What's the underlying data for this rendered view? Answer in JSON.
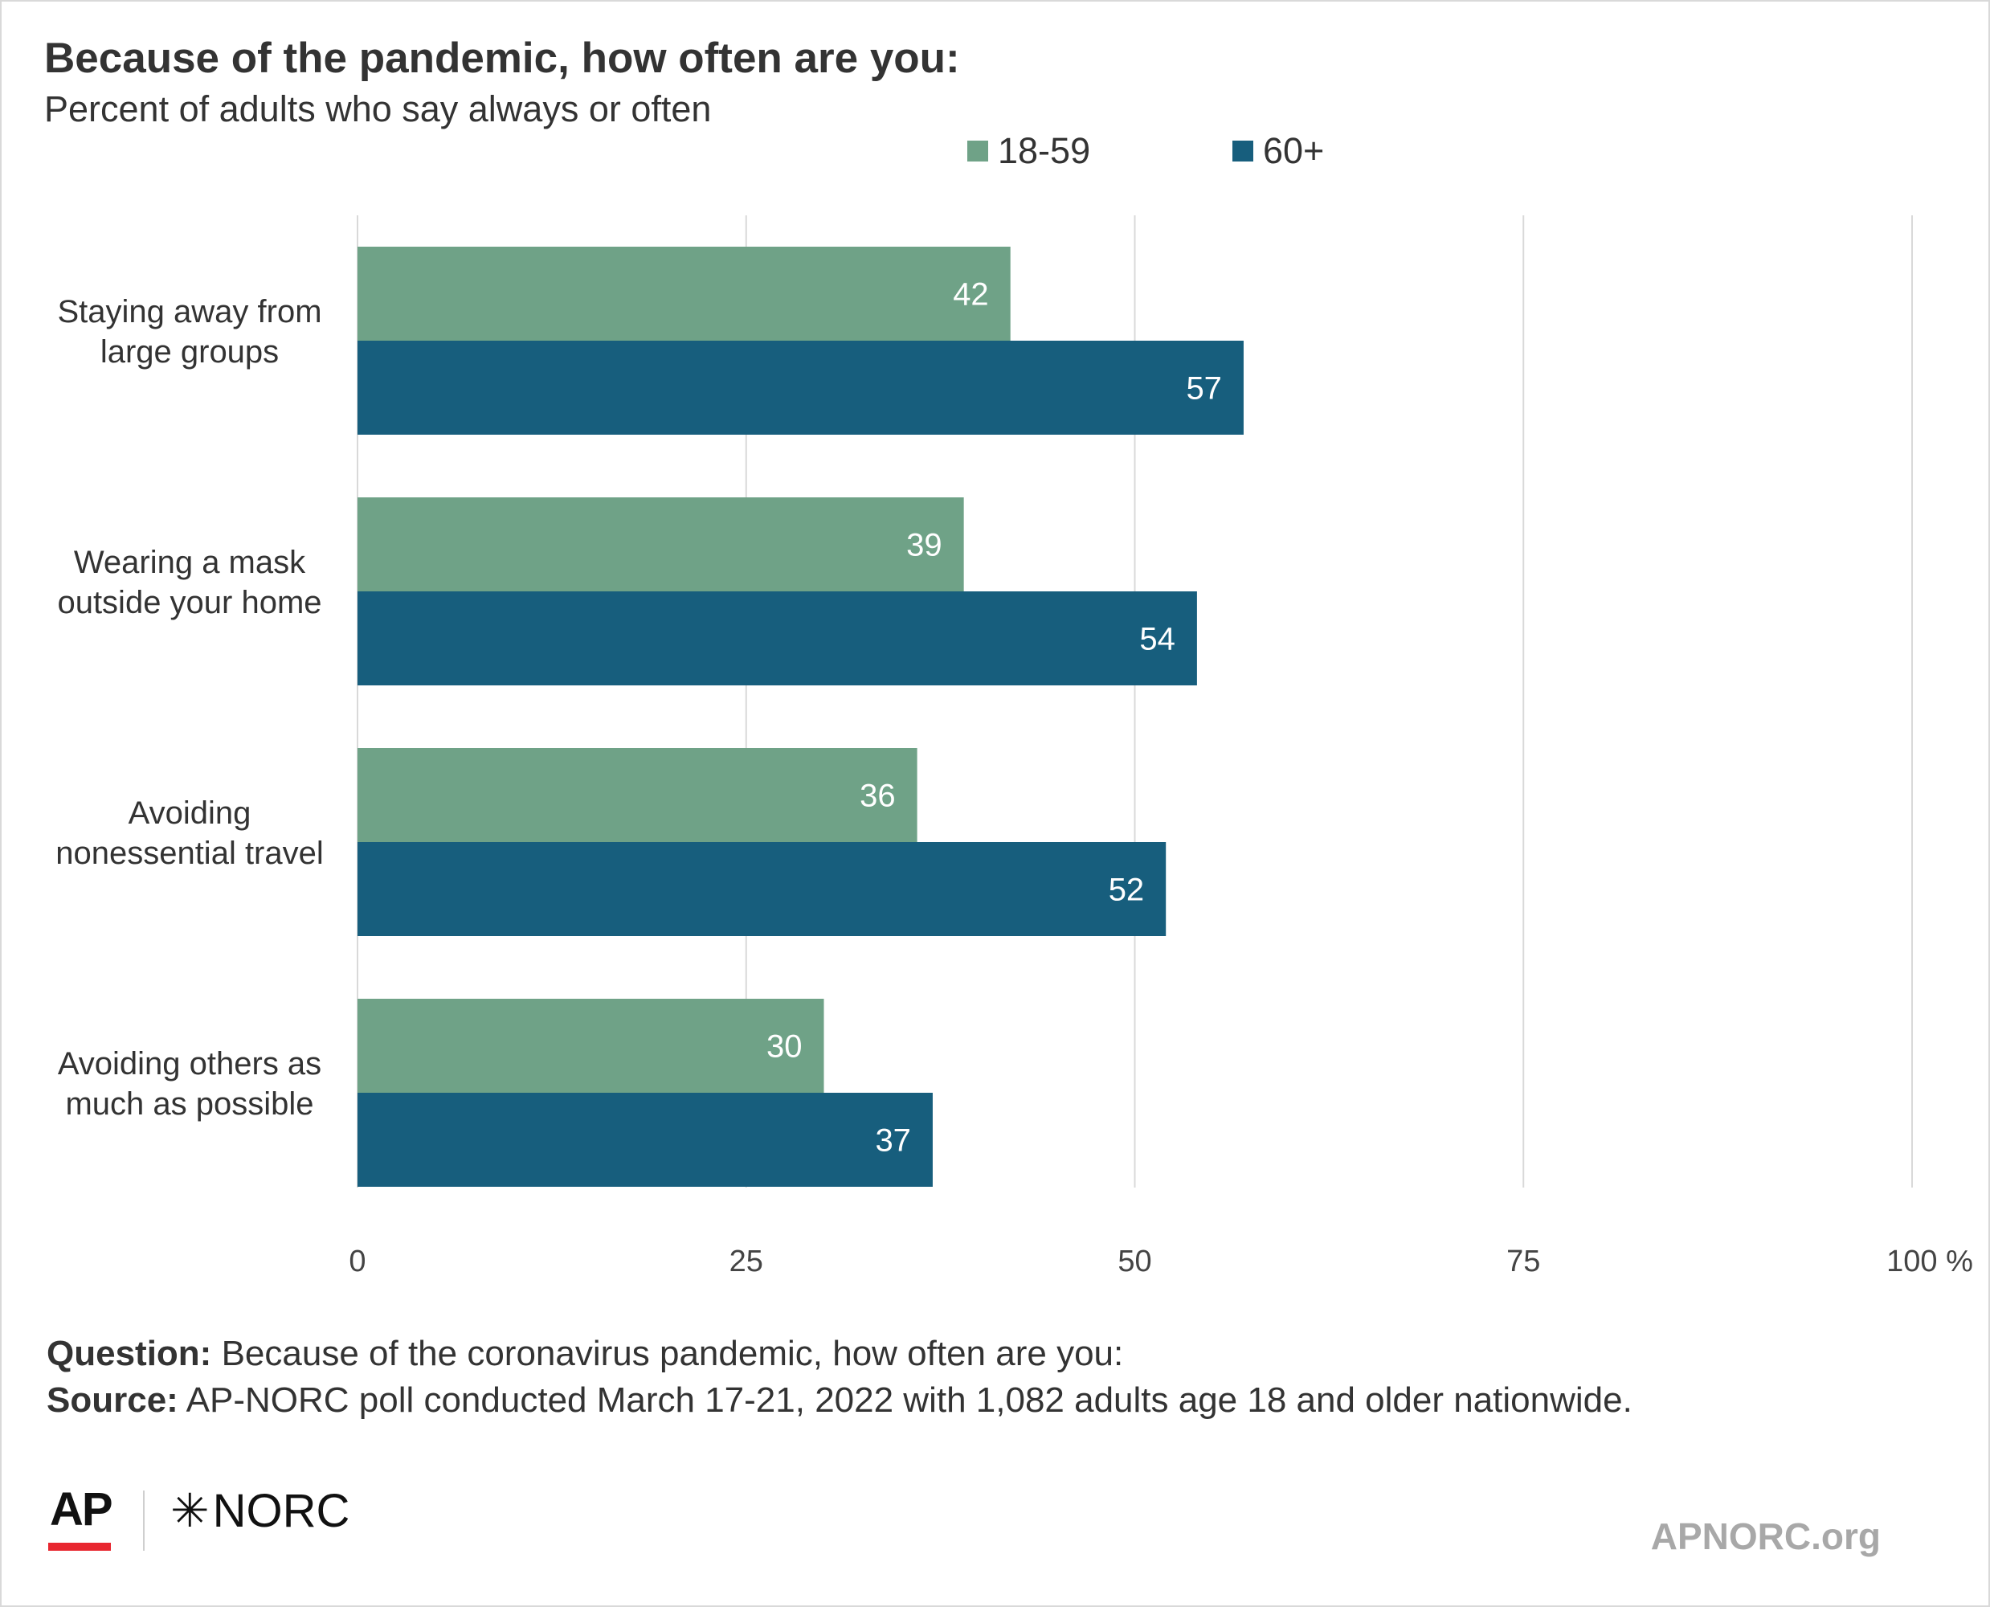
{
  "title": "Because of the pandemic, how often are you:",
  "subtitle": "Percent of adults who say always or often",
  "footnotes": {
    "question_label": "Question:",
    "question_text": "Because of the coronavirus pandemic, how often are you:",
    "source_label": "Source:",
    "source_text": "AP-NORC poll conducted March 17-21, 2022 with 1,082 adults age 18 and older nationwide."
  },
  "logos": {
    "ap": "AP",
    "norc": "NORC",
    "site": "APNORC.org"
  },
  "colors": {
    "series_1": "#6fa287",
    "series_2": "#175e7d",
    "grid": "#d9d9d9",
    "text": "#333333"
  },
  "chart_data": {
    "type": "bar",
    "orientation": "horizontal",
    "categories": [
      [
        "Staying away from",
        "large groups"
      ],
      [
        "Wearing a mask",
        "outside your home"
      ],
      [
        "Avoiding",
        "nonessential travel"
      ],
      [
        "Avoiding others as",
        "much as possible"
      ]
    ],
    "series": [
      {
        "name": "18-59",
        "values": [
          42,
          39,
          36,
          30
        ],
        "color": "#6fa287"
      },
      {
        "name": "60+",
        "values": [
          57,
          54,
          52,
          37
        ],
        "color": "#175e7d"
      }
    ],
    "xlim": [
      0,
      100
    ],
    "ticks": [
      0,
      25,
      50,
      75,
      100
    ],
    "tick_labels": [
      "0",
      "25",
      "50",
      "75",
      "100 %"
    ],
    "grid": true,
    "legend_position": "top"
  }
}
